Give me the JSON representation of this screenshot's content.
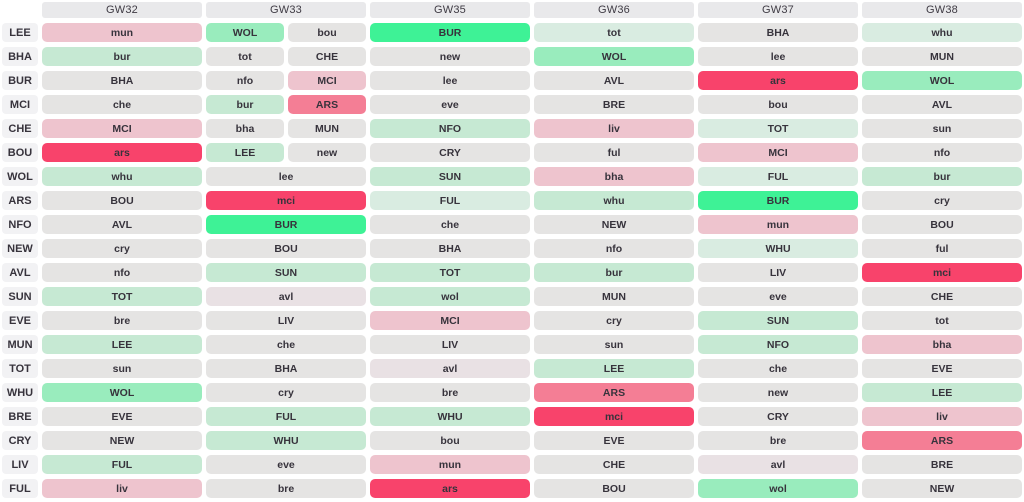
{
  "palette": {
    "g5": "#3ef296",
    "g4": "#99ecbd",
    "g3": "#c6e9d3",
    "g2": "#d9ece1",
    "n0": "#e5e4e3",
    "r1": "#e9e1e4",
    "r2": "#eec4ce",
    "r3": "#f47e95",
    "r4": "#f8436b",
    "header_bg": "#e9e9eb",
    "label_bg": "#f2f2f4",
    "cell_text": "#37333c"
  },
  "columns": [
    {
      "label": "GW32"
    },
    {
      "label": "GW33"
    },
    {
      "label": "GW35"
    },
    {
      "label": "GW36"
    },
    {
      "label": "GW37"
    },
    {
      "label": "GW38"
    }
  ],
  "rows": [
    {
      "team": "LEE",
      "fixtures": [
        [
          {
            "opp": "mun",
            "c": "r2"
          }
        ],
        [
          {
            "opp": "WOL",
            "c": "g4"
          },
          {
            "opp": "bou",
            "c": "n0"
          }
        ],
        [
          {
            "opp": "BUR",
            "c": "g5"
          }
        ],
        [
          {
            "opp": "tot",
            "c": "g2"
          }
        ],
        [
          {
            "opp": "BHA",
            "c": "n0"
          }
        ],
        [
          {
            "opp": "whu",
            "c": "g2"
          }
        ]
      ]
    },
    {
      "team": "BHA",
      "fixtures": [
        [
          {
            "opp": "bur",
            "c": "g3"
          }
        ],
        [
          {
            "opp": "tot",
            "c": "n0"
          },
          {
            "opp": "CHE",
            "c": "n0"
          }
        ],
        [
          {
            "opp": "new",
            "c": "n0"
          }
        ],
        [
          {
            "opp": "WOL",
            "c": "g4"
          }
        ],
        [
          {
            "opp": "lee",
            "c": "n0"
          }
        ],
        [
          {
            "opp": "MUN",
            "c": "n0"
          }
        ]
      ]
    },
    {
      "team": "BUR",
      "fixtures": [
        [
          {
            "opp": "BHA",
            "c": "n0"
          }
        ],
        [
          {
            "opp": "nfo",
            "c": "n0"
          },
          {
            "opp": "MCI",
            "c": "r2"
          }
        ],
        [
          {
            "opp": "lee",
            "c": "n0"
          }
        ],
        [
          {
            "opp": "AVL",
            "c": "n0"
          }
        ],
        [
          {
            "opp": "ars",
            "c": "r4"
          }
        ],
        [
          {
            "opp": "WOL",
            "c": "g4"
          }
        ]
      ]
    },
    {
      "team": "MCI",
      "fixtures": [
        [
          {
            "opp": "che",
            "c": "n0"
          }
        ],
        [
          {
            "opp": "bur",
            "c": "g3"
          },
          {
            "opp": "ARS",
            "c": "r3"
          }
        ],
        [
          {
            "opp": "eve",
            "c": "n0"
          }
        ],
        [
          {
            "opp": "BRE",
            "c": "n0"
          }
        ],
        [
          {
            "opp": "bou",
            "c": "n0"
          }
        ],
        [
          {
            "opp": "AVL",
            "c": "n0"
          }
        ]
      ]
    },
    {
      "team": "CHE",
      "fixtures": [
        [
          {
            "opp": "MCI",
            "c": "r2"
          }
        ],
        [
          {
            "opp": "bha",
            "c": "n0"
          },
          {
            "opp": "MUN",
            "c": "n0"
          }
        ],
        [
          {
            "opp": "NFO",
            "c": "g3"
          }
        ],
        [
          {
            "opp": "liv",
            "c": "r2"
          }
        ],
        [
          {
            "opp": "TOT",
            "c": "g2"
          }
        ],
        [
          {
            "opp": "sun",
            "c": "n0"
          }
        ]
      ]
    },
    {
      "team": "BOU",
      "fixtures": [
        [
          {
            "opp": "ars",
            "c": "r4"
          }
        ],
        [
          {
            "opp": "LEE",
            "c": "g3"
          },
          {
            "opp": "new",
            "c": "n0"
          }
        ],
        [
          {
            "opp": "CRY",
            "c": "n0"
          }
        ],
        [
          {
            "opp": "ful",
            "c": "n0"
          }
        ],
        [
          {
            "opp": "MCI",
            "c": "r2"
          }
        ],
        [
          {
            "opp": "nfo",
            "c": "n0"
          }
        ]
      ]
    },
    {
      "team": "WOL",
      "fixtures": [
        [
          {
            "opp": "whu",
            "c": "g3"
          }
        ],
        [
          {
            "opp": "lee",
            "c": "n0"
          }
        ],
        [
          {
            "opp": "SUN",
            "c": "g3"
          }
        ],
        [
          {
            "opp": "bha",
            "c": "r2"
          }
        ],
        [
          {
            "opp": "FUL",
            "c": "g2"
          }
        ],
        [
          {
            "opp": "bur",
            "c": "g3"
          }
        ]
      ]
    },
    {
      "team": "ARS",
      "fixtures": [
        [
          {
            "opp": "BOU",
            "c": "n0"
          }
        ],
        [
          {
            "opp": "mci",
            "c": "r4"
          }
        ],
        [
          {
            "opp": "FUL",
            "c": "g2"
          }
        ],
        [
          {
            "opp": "whu",
            "c": "g3"
          }
        ],
        [
          {
            "opp": "BUR",
            "c": "g5"
          }
        ],
        [
          {
            "opp": "cry",
            "c": "n0"
          }
        ]
      ]
    },
    {
      "team": "NFO",
      "fixtures": [
        [
          {
            "opp": "AVL",
            "c": "n0"
          }
        ],
        [
          {
            "opp": "BUR",
            "c": "g5"
          }
        ],
        [
          {
            "opp": "che",
            "c": "n0"
          }
        ],
        [
          {
            "opp": "NEW",
            "c": "n0"
          }
        ],
        [
          {
            "opp": "mun",
            "c": "r2"
          }
        ],
        [
          {
            "opp": "BOU",
            "c": "n0"
          }
        ]
      ]
    },
    {
      "team": "NEW",
      "fixtures": [
        [
          {
            "opp": "cry",
            "c": "n0"
          }
        ],
        [
          {
            "opp": "BOU",
            "c": "n0"
          }
        ],
        [
          {
            "opp": "BHA",
            "c": "n0"
          }
        ],
        [
          {
            "opp": "nfo",
            "c": "n0"
          }
        ],
        [
          {
            "opp": "WHU",
            "c": "g2"
          }
        ],
        [
          {
            "opp": "ful",
            "c": "n0"
          }
        ]
      ]
    },
    {
      "team": "AVL",
      "fixtures": [
        [
          {
            "opp": "nfo",
            "c": "n0"
          }
        ],
        [
          {
            "opp": "SUN",
            "c": "g3"
          }
        ],
        [
          {
            "opp": "TOT",
            "c": "g3"
          }
        ],
        [
          {
            "opp": "bur",
            "c": "g3"
          }
        ],
        [
          {
            "opp": "LIV",
            "c": "n0"
          }
        ],
        [
          {
            "opp": "mci",
            "c": "r4"
          }
        ]
      ]
    },
    {
      "team": "SUN",
      "fixtures": [
        [
          {
            "opp": "TOT",
            "c": "g3"
          }
        ],
        [
          {
            "opp": "avl",
            "c": "r1"
          }
        ],
        [
          {
            "opp": "wol",
            "c": "g3"
          }
        ],
        [
          {
            "opp": "MUN",
            "c": "n0"
          }
        ],
        [
          {
            "opp": "eve",
            "c": "n0"
          }
        ],
        [
          {
            "opp": "CHE",
            "c": "n0"
          }
        ]
      ]
    },
    {
      "team": "EVE",
      "fixtures": [
        [
          {
            "opp": "bre",
            "c": "n0"
          }
        ],
        [
          {
            "opp": "LIV",
            "c": "n0"
          }
        ],
        [
          {
            "opp": "MCI",
            "c": "r2"
          }
        ],
        [
          {
            "opp": "cry",
            "c": "n0"
          }
        ],
        [
          {
            "opp": "SUN",
            "c": "g3"
          }
        ],
        [
          {
            "opp": "tot",
            "c": "n0"
          }
        ]
      ]
    },
    {
      "team": "MUN",
      "fixtures": [
        [
          {
            "opp": "LEE",
            "c": "g3"
          }
        ],
        [
          {
            "opp": "che",
            "c": "n0"
          }
        ],
        [
          {
            "opp": "LIV",
            "c": "n0"
          }
        ],
        [
          {
            "opp": "sun",
            "c": "n0"
          }
        ],
        [
          {
            "opp": "NFO",
            "c": "g3"
          }
        ],
        [
          {
            "opp": "bha",
            "c": "r2"
          }
        ]
      ]
    },
    {
      "team": "TOT",
      "fixtures": [
        [
          {
            "opp": "sun",
            "c": "n0"
          }
        ],
        [
          {
            "opp": "BHA",
            "c": "n0"
          }
        ],
        [
          {
            "opp": "avl",
            "c": "r1"
          }
        ],
        [
          {
            "opp": "LEE",
            "c": "g3"
          }
        ],
        [
          {
            "opp": "che",
            "c": "n0"
          }
        ],
        [
          {
            "opp": "EVE",
            "c": "n0"
          }
        ]
      ]
    },
    {
      "team": "WHU",
      "fixtures": [
        [
          {
            "opp": "WOL",
            "c": "g4"
          }
        ],
        [
          {
            "opp": "cry",
            "c": "n0"
          }
        ],
        [
          {
            "opp": "bre",
            "c": "n0"
          }
        ],
        [
          {
            "opp": "ARS",
            "c": "r3"
          }
        ],
        [
          {
            "opp": "new",
            "c": "n0"
          }
        ],
        [
          {
            "opp": "LEE",
            "c": "g3"
          }
        ]
      ]
    },
    {
      "team": "BRE",
      "fixtures": [
        [
          {
            "opp": "EVE",
            "c": "n0"
          }
        ],
        [
          {
            "opp": "FUL",
            "c": "g3"
          }
        ],
        [
          {
            "opp": "WHU",
            "c": "g3"
          }
        ],
        [
          {
            "opp": "mci",
            "c": "r4"
          }
        ],
        [
          {
            "opp": "CRY",
            "c": "n0"
          }
        ],
        [
          {
            "opp": "liv",
            "c": "r2"
          }
        ]
      ]
    },
    {
      "team": "CRY",
      "fixtures": [
        [
          {
            "opp": "NEW",
            "c": "n0"
          }
        ],
        [
          {
            "opp": "WHU",
            "c": "g3"
          }
        ],
        [
          {
            "opp": "bou",
            "c": "n0"
          }
        ],
        [
          {
            "opp": "EVE",
            "c": "n0"
          }
        ],
        [
          {
            "opp": "bre",
            "c": "n0"
          }
        ],
        [
          {
            "opp": "ARS",
            "c": "r3"
          }
        ]
      ]
    },
    {
      "team": "LIV",
      "fixtures": [
        [
          {
            "opp": "FUL",
            "c": "g3"
          }
        ],
        [
          {
            "opp": "eve",
            "c": "n0"
          }
        ],
        [
          {
            "opp": "mun",
            "c": "r2"
          }
        ],
        [
          {
            "opp": "CHE",
            "c": "n0"
          }
        ],
        [
          {
            "opp": "avl",
            "c": "r1"
          }
        ],
        [
          {
            "opp": "BRE",
            "c": "n0"
          }
        ]
      ]
    },
    {
      "team": "FUL",
      "fixtures": [
        [
          {
            "opp": "liv",
            "c": "r2"
          }
        ],
        [
          {
            "opp": "bre",
            "c": "n0"
          }
        ],
        [
          {
            "opp": "ars",
            "c": "r4"
          }
        ],
        [
          {
            "opp": "BOU",
            "c": "n0"
          }
        ],
        [
          {
            "opp": "wol",
            "c": "g4"
          }
        ],
        [
          {
            "opp": "NEW",
            "c": "n0"
          }
        ]
      ]
    }
  ]
}
